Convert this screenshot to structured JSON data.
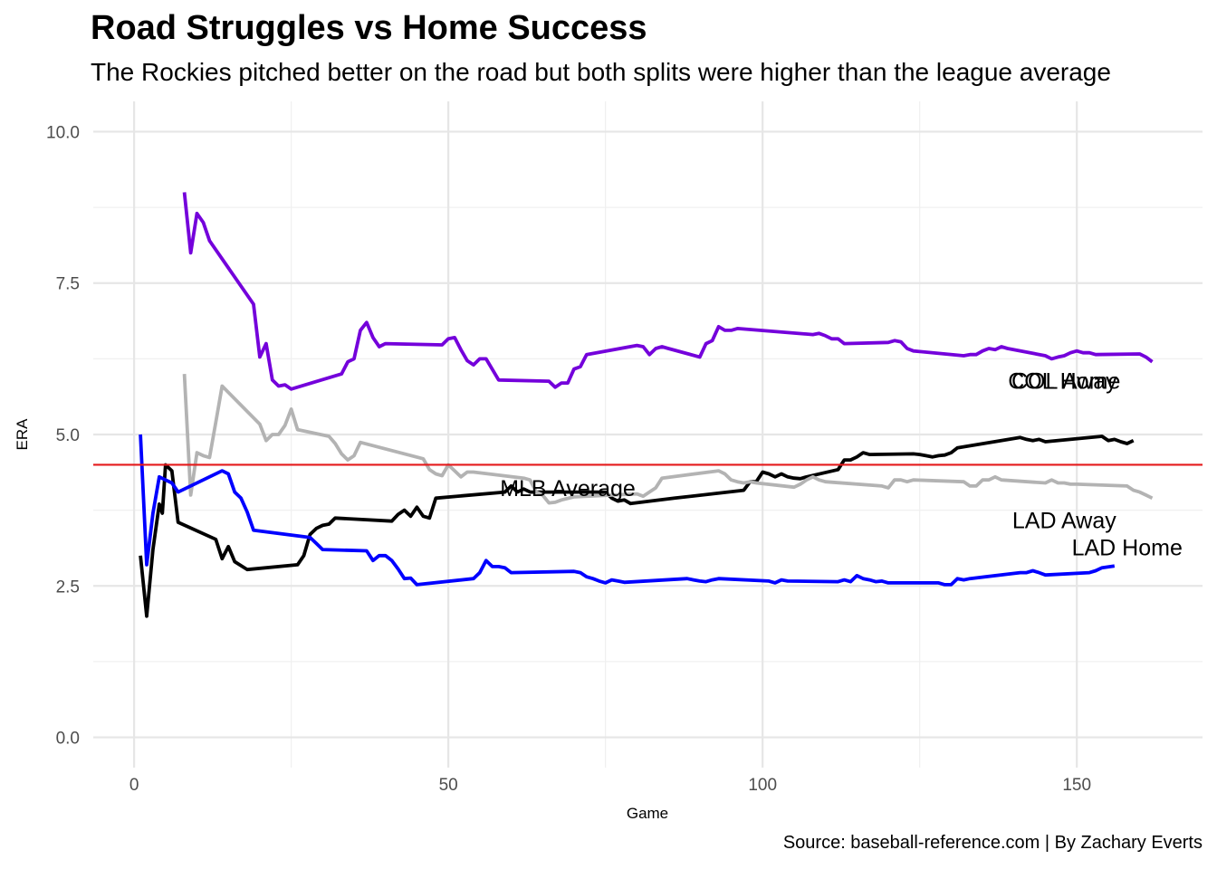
{
  "chart_data": {
    "type": "line",
    "title": "Road Struggles vs Home Success",
    "subtitle": "The Rockies pitched better on the road but both splits were higher than the league average",
    "caption": "Source: baseball-reference.com | By Zachary Everts",
    "xlabel": "Game",
    "ylabel": "ERA",
    "xlim": [
      -6.5,
      170
    ],
    "ylim": [
      -0.5,
      10.5
    ],
    "x_ticks": [
      0,
      50,
      100,
      150
    ],
    "y_ticks": [
      0.0,
      2.5,
      5.0,
      7.5,
      10.0
    ],
    "x_tick_labels": [
      "0",
      "50",
      "100",
      "150"
    ],
    "y_tick_labels": [
      "0.0",
      "2.5",
      "5.0",
      "7.5",
      "10.0"
    ],
    "grid": true,
    "reference_line": {
      "label": "MLB Average",
      "y": 4.5,
      "color": "#e41a1c",
      "label_x": 69,
      "label_y": 4.08
    },
    "series": [
      {
        "name": "COL Home",
        "color": "#7400db",
        "label_x": 148,
        "label_y": 5.85,
        "points": [
          [
            8,
            9.0
          ],
          [
            9,
            8.0
          ],
          [
            10,
            8.65
          ],
          [
            11,
            8.5
          ],
          [
            12,
            8.2
          ],
          [
            19,
            7.15
          ],
          [
            20,
            6.28
          ],
          [
            21,
            6.5
          ],
          [
            22,
            5.9
          ],
          [
            23,
            5.8
          ],
          [
            24,
            5.82
          ],
          [
            25,
            5.75
          ],
          [
            33,
            6.0
          ],
          [
            34,
            6.2
          ],
          [
            35,
            6.25
          ],
          [
            36,
            6.72
          ],
          [
            37,
            6.85
          ],
          [
            38,
            6.6
          ],
          [
            39,
            6.45
          ],
          [
            40,
            6.5
          ],
          [
            49,
            6.48
          ],
          [
            50,
            6.58
          ],
          [
            51,
            6.6
          ],
          [
            52,
            6.4
          ],
          [
            53,
            6.22
          ],
          [
            54,
            6.15
          ],
          [
            55,
            6.25
          ],
          [
            56,
            6.25
          ],
          [
            58,
            5.9
          ],
          [
            66,
            5.88
          ],
          [
            67,
            5.78
          ],
          [
            68,
            5.85
          ],
          [
            69,
            5.85
          ],
          [
            70,
            6.08
          ],
          [
            71,
            6.12
          ],
          [
            72,
            6.32
          ],
          [
            80,
            6.47
          ],
          [
            81,
            6.45
          ],
          [
            82,
            6.32
          ],
          [
            83,
            6.42
          ],
          [
            84,
            6.45
          ],
          [
            85,
            6.42
          ],
          [
            90,
            6.28
          ],
          [
            91,
            6.5
          ],
          [
            92,
            6.55
          ],
          [
            93,
            6.78
          ],
          [
            94,
            6.72
          ],
          [
            95,
            6.72
          ],
          [
            96,
            6.75
          ],
          [
            108,
            6.65
          ],
          [
            109,
            6.67
          ],
          [
            110,
            6.63
          ],
          [
            111,
            6.58
          ],
          [
            112,
            6.58
          ],
          [
            113,
            6.5
          ],
          [
            120,
            6.52
          ],
          [
            121,
            6.55
          ],
          [
            122,
            6.53
          ],
          [
            123,
            6.42
          ],
          [
            124,
            6.38
          ],
          [
            132,
            6.3
          ],
          [
            133,
            6.32
          ],
          [
            134,
            6.32
          ],
          [
            135,
            6.38
          ],
          [
            136,
            6.42
          ],
          [
            137,
            6.4
          ],
          [
            138,
            6.45
          ],
          [
            139,
            6.42
          ],
          [
            145,
            6.3
          ],
          [
            146,
            6.25
          ],
          [
            147,
            6.28
          ],
          [
            148,
            6.3
          ],
          [
            149,
            6.35
          ],
          [
            150,
            6.38
          ],
          [
            151,
            6.35
          ],
          [
            152,
            6.35
          ],
          [
            153,
            6.32
          ],
          [
            160,
            6.33
          ],
          [
            161,
            6.28
          ],
          [
            162,
            6.2
          ]
        ]
      },
      {
        "name": "COL Away",
        "color": "#000000",
        "label_x": 148,
        "label_y": 5.85,
        "points": [
          [
            1,
            3.0
          ],
          [
            2,
            2.0
          ],
          [
            3,
            3.1
          ],
          [
            4,
            3.85
          ],
          [
            4.5,
            3.7
          ],
          [
            5,
            4.5
          ],
          [
            6,
            4.4
          ],
          [
            7,
            3.55
          ],
          [
            13,
            3.27
          ],
          [
            14,
            2.95
          ],
          [
            15,
            3.15
          ],
          [
            16,
            2.9
          ],
          [
            18,
            2.77
          ],
          [
            26,
            2.85
          ],
          [
            27,
            3.0
          ],
          [
            28,
            3.35
          ],
          [
            29,
            3.45
          ],
          [
            30,
            3.5
          ],
          [
            31,
            3.52
          ],
          [
            32,
            3.62
          ],
          [
            41,
            3.57
          ],
          [
            42,
            3.68
          ],
          [
            43,
            3.75
          ],
          [
            44,
            3.65
          ],
          [
            45,
            3.8
          ],
          [
            46,
            3.65
          ],
          [
            47,
            3.62
          ],
          [
            48,
            3.95
          ],
          [
            59,
            4.05
          ],
          [
            60,
            4.15
          ],
          [
            61,
            4.05
          ],
          [
            62,
            4.1
          ],
          [
            63,
            4.05
          ],
          [
            75,
            4.05
          ],
          [
            76,
            3.95
          ],
          [
            77,
            3.9
          ],
          [
            78,
            3.92
          ],
          [
            79,
            3.86
          ],
          [
            86,
            3.95
          ],
          [
            97,
            4.08
          ],
          [
            98,
            4.22
          ],
          [
            99,
            4.22
          ],
          [
            100,
            4.38
          ],
          [
            101,
            4.35
          ],
          [
            102,
            4.3
          ],
          [
            103,
            4.35
          ],
          [
            104,
            4.3
          ],
          [
            105,
            4.28
          ],
          [
            106,
            4.27
          ],
          [
            107,
            4.3
          ],
          [
            112,
            4.42
          ],
          [
            113,
            4.58
          ],
          [
            114,
            4.58
          ],
          [
            115,
            4.63
          ],
          [
            116,
            4.7
          ],
          [
            117,
            4.67
          ],
          [
            124,
            4.68
          ],
          [
            125,
            4.67
          ],
          [
            126,
            4.65
          ],
          [
            127,
            4.63
          ],
          [
            128,
            4.65
          ],
          [
            129,
            4.66
          ],
          [
            130,
            4.7
          ],
          [
            131,
            4.78
          ],
          [
            141,
            4.95
          ],
          [
            142,
            4.92
          ],
          [
            143,
            4.9
          ],
          [
            144,
            4.92
          ],
          [
            145,
            4.88
          ],
          [
            154,
            4.97
          ],
          [
            155,
            4.9
          ],
          [
            156,
            4.92
          ],
          [
            157,
            4.88
          ],
          [
            158,
            4.85
          ],
          [
            159,
            4.9
          ]
        ]
      },
      {
        "name": "LAD Away",
        "color": "#b3b3b3",
        "label_x": 148,
        "label_y": 3.55,
        "points": [
          [
            8,
            6.0
          ],
          [
            9,
            4.0
          ],
          [
            10,
            4.7
          ],
          [
            11,
            4.65
          ],
          [
            12,
            4.62
          ],
          [
            13,
            5.2
          ],
          [
            14,
            5.8
          ],
          [
            20,
            5.17
          ],
          [
            21,
            4.9
          ],
          [
            22,
            5.0
          ],
          [
            23,
            5.0
          ],
          [
            24,
            5.15
          ],
          [
            25,
            5.42
          ],
          [
            26,
            5.08
          ],
          [
            31,
            4.97
          ],
          [
            32,
            4.85
          ],
          [
            33,
            4.68
          ],
          [
            34,
            4.58
          ],
          [
            35,
            4.65
          ],
          [
            36,
            4.87
          ],
          [
            46,
            4.6
          ],
          [
            47,
            4.42
          ],
          [
            48,
            4.35
          ],
          [
            49,
            4.32
          ],
          [
            50,
            4.5
          ],
          [
            51,
            4.4
          ],
          [
            52,
            4.3
          ],
          [
            53,
            4.38
          ],
          [
            54,
            4.38
          ],
          [
            62,
            4.28
          ],
          [
            63,
            4.25
          ],
          [
            64,
            4.05
          ],
          [
            65,
            4.0
          ],
          [
            66,
            3.87
          ],
          [
            67,
            3.88
          ],
          [
            68,
            3.92
          ],
          [
            70,
            3.97
          ],
          [
            80,
            4.02
          ],
          [
            81,
            3.98
          ],
          [
            82,
            4.05
          ],
          [
            83,
            4.12
          ],
          [
            84,
            4.28
          ],
          [
            93,
            4.4
          ],
          [
            94,
            4.35
          ],
          [
            95,
            4.25
          ],
          [
            96,
            4.22
          ],
          [
            97,
            4.2
          ],
          [
            98,
            4.22
          ],
          [
            99,
            4.2
          ],
          [
            105,
            4.13
          ],
          [
            106,
            4.18
          ],
          [
            107,
            4.25
          ],
          [
            108,
            4.3
          ],
          [
            109,
            4.25
          ],
          [
            110,
            4.22
          ],
          [
            119,
            4.15
          ],
          [
            120,
            4.12
          ],
          [
            121,
            4.25
          ],
          [
            122,
            4.25
          ],
          [
            123,
            4.22
          ],
          [
            124,
            4.25
          ],
          [
            132,
            4.22
          ],
          [
            133,
            4.15
          ],
          [
            134,
            4.15
          ],
          [
            135,
            4.25
          ],
          [
            136,
            4.25
          ],
          [
            137,
            4.3
          ],
          [
            138,
            4.25
          ],
          [
            145,
            4.2
          ],
          [
            146,
            4.25
          ],
          [
            147,
            4.2
          ],
          [
            148,
            4.2
          ],
          [
            149,
            4.18
          ],
          [
            150,
            4.18
          ],
          [
            158,
            4.15
          ],
          [
            159,
            4.08
          ],
          [
            160,
            4.05
          ],
          [
            161,
            4.0
          ],
          [
            162,
            3.95
          ]
        ]
      },
      {
        "name": "LAD Home",
        "color": "#0000ff",
        "label_x": 158,
        "label_y": 3.1,
        "points": [
          [
            1,
            5.0
          ],
          [
            2,
            2.85
          ],
          [
            3,
            3.7
          ],
          [
            4,
            4.3
          ],
          [
            5,
            4.25
          ],
          [
            6,
            4.2
          ],
          [
            7,
            4.05
          ],
          [
            14,
            4.4
          ],
          [
            15,
            4.35
          ],
          [
            16,
            4.05
          ],
          [
            17,
            3.95
          ],
          [
            18,
            3.72
          ],
          [
            19,
            3.42
          ],
          [
            28,
            3.3
          ],
          [
            29,
            3.2
          ],
          [
            30,
            3.1
          ],
          [
            37,
            3.08
          ],
          [
            38,
            2.92
          ],
          [
            39,
            3.0
          ],
          [
            40,
            3.0
          ],
          [
            41,
            2.92
          ],
          [
            42,
            2.78
          ],
          [
            43,
            2.62
          ],
          [
            44,
            2.63
          ],
          [
            45,
            2.52
          ],
          [
            54,
            2.62
          ],
          [
            55,
            2.72
          ],
          [
            56,
            2.92
          ],
          [
            57,
            2.82
          ],
          [
            58,
            2.82
          ],
          [
            59,
            2.8
          ],
          [
            60,
            2.72
          ],
          [
            70,
            2.74
          ],
          [
            71,
            2.72
          ],
          [
            72,
            2.65
          ],
          [
            73,
            2.62
          ],
          [
            74,
            2.58
          ],
          [
            75,
            2.55
          ],
          [
            76,
            2.6
          ],
          [
            77,
            2.58
          ],
          [
            78,
            2.56
          ],
          [
            88,
            2.62
          ],
          [
            89,
            2.6
          ],
          [
            90,
            2.58
          ],
          [
            91,
            2.57
          ],
          [
            92,
            2.6
          ],
          [
            93,
            2.62
          ],
          [
            101,
            2.58
          ],
          [
            102,
            2.55
          ],
          [
            103,
            2.6
          ],
          [
            104,
            2.58
          ],
          [
            112,
            2.57
          ],
          [
            113,
            2.6
          ],
          [
            114,
            2.57
          ],
          [
            115,
            2.67
          ],
          [
            116,
            2.62
          ],
          [
            117,
            2.6
          ],
          [
            118,
            2.57
          ],
          [
            119,
            2.58
          ],
          [
            120,
            2.55
          ],
          [
            128,
            2.55
          ],
          [
            129,
            2.52
          ],
          [
            130,
            2.52
          ],
          [
            131,
            2.62
          ],
          [
            132,
            2.6
          ],
          [
            133,
            2.62
          ],
          [
            141,
            2.72
          ],
          [
            142,
            2.72
          ],
          [
            143,
            2.75
          ],
          [
            144,
            2.72
          ],
          [
            145,
            2.68
          ],
          [
            152,
            2.72
          ],
          [
            153,
            2.75
          ],
          [
            154,
            2.8
          ],
          [
            156,
            2.83
          ]
        ]
      }
    ]
  }
}
